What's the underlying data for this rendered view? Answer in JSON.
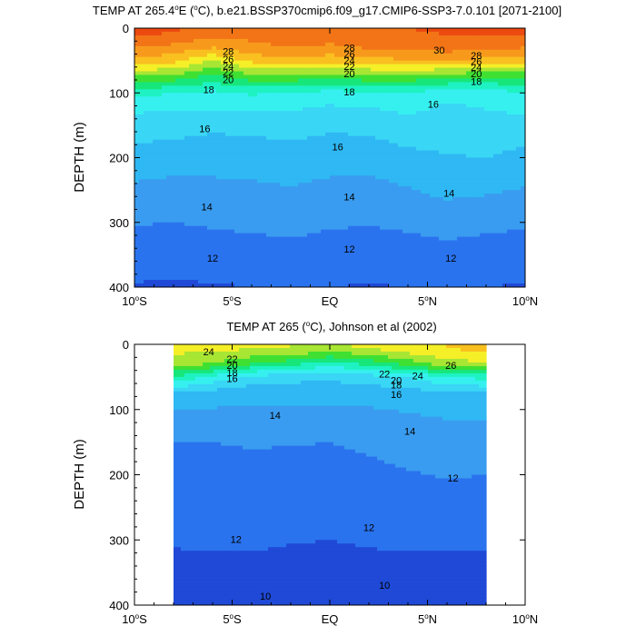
{
  "colors": {
    "levels": [
      "#1f49d6",
      "#2a73ee",
      "#3a9cf0",
      "#2fb8f3",
      "#3ad6f5",
      "#36f0f0",
      "#1ef2c2",
      "#17e67a",
      "#3fe032",
      "#a8e634",
      "#f5ef28",
      "#f9c020",
      "#f79a1c",
      "#f27416",
      "#ec4a10",
      "#e41e0a",
      "#c40000"
    ],
    "missing": "#ffffff"
  },
  "chart_data": [
    {
      "type": "contour",
      "title": "TEMP AT 265.4°E (°C), b.e21.BSSP370cmip6.f09_g17.CMIP6-SSP3-7.0.101 [2071-2100]",
      "title_parts": {
        "pre": "TEMP AT 265.4",
        "deg1": "o",
        "mid": "E (",
        "deg2": "o",
        "post": "C), b.e21.BSSP370cmip6.f09_g17.CMIP6-SSP3-7.0.101 [2071-2100]"
      },
      "ylabel": "DEPTH (m)",
      "xlim": [
        -10,
        10
      ],
      "ylim": [
        400,
        0
      ],
      "xticks": [
        {
          "v": -10,
          "label": "10",
          "sfx": "S"
        },
        {
          "v": -5,
          "label": "5",
          "sfx": "S"
        },
        {
          "v": 0,
          "label": "EQ",
          "sfx": ""
        },
        {
          "v": 5,
          "label": "5",
          "sfx": "N"
        },
        {
          "v": 10,
          "label": "10",
          "sfx": "N"
        }
      ],
      "yticks": [
        0,
        100,
        200,
        300,
        400
      ],
      "data_xrange": [
        -10,
        10
      ],
      "profile_lat": [
        -10,
        -8,
        -6,
        -4,
        -2,
        0,
        2,
        4,
        6,
        8,
        10
      ],
      "profile_depth": [
        0,
        10,
        30,
        50,
        75,
        100,
        125,
        150,
        200,
        250,
        300,
        350,
        400
      ],
      "profiles": [
        [
          31.5,
          31.2,
          29.5,
          27.5,
          23.5,
          19.5,
          17.8,
          16.8,
          15.4,
          14.2,
          13.1,
          12.1,
          11.4
        ],
        [
          31.2,
          30.8,
          29.0,
          27.0,
          23.0,
          19.0,
          17.5,
          16.6,
          15.2,
          14.0,
          13.0,
          12.1,
          11.3
        ],
        [
          30.6,
          30.0,
          28.0,
          25.0,
          21.5,
          18.6,
          17.7,
          16.3,
          15.1,
          14.1,
          13.2,
          12.2,
          11.4
        ],
        [
          30.2,
          29.8,
          29.2,
          27.0,
          23.0,
          19.2,
          17.6,
          16.4,
          15.2,
          14.2,
          13.3,
          12.4,
          11.5
        ],
        [
          30.4,
          30.0,
          29.5,
          27.5,
          23.0,
          19.0,
          17.6,
          16.6,
          15.4,
          14.4,
          13.4,
          12.6,
          11.6
        ],
        [
          30.3,
          30.0,
          29.3,
          27.0,
          22.5,
          18.4,
          17.2,
          16.3,
          15.1,
          14.1,
          13.2,
          12.3,
          11.5
        ],
        [
          30.6,
          30.3,
          29.6,
          27.5,
          23.0,
          18.8,
          17.4,
          16.4,
          15.1,
          14.0,
          13.1,
          12.2,
          11.4
        ],
        [
          31.0,
          30.8,
          30.0,
          27.8,
          23.0,
          19.0,
          17.8,
          16.9,
          15.6,
          14.4,
          13.3,
          12.3,
          11.5
        ],
        [
          31.3,
          31.0,
          30.2,
          28.0,
          22.5,
          18.0,
          17.2,
          16.8,
          15.9,
          14.9,
          13.6,
          12.5,
          11.6
        ],
        [
          31.5,
          31.2,
          30.0,
          27.5,
          22.0,
          18.2,
          17.5,
          17.0,
          16.0,
          14.7,
          13.4,
          12.3,
          11.5
        ],
        [
          31.4,
          31.0,
          29.5,
          27.0,
          22.5,
          19.0,
          17.8,
          16.8,
          15.6,
          14.4,
          13.2,
          12.2,
          11.4
        ]
      ],
      "contour_labels": [
        {
          "x": -5.2,
          "y": 36,
          "t": "28"
        },
        {
          "x": -5.2,
          "y": 48,
          "t": "26"
        },
        {
          "x": -5.2,
          "y": 58,
          "t": "24"
        },
        {
          "x": -5.2,
          "y": 68,
          "t": "22"
        },
        {
          "x": -5.2,
          "y": 79,
          "t": "20"
        },
        {
          "x": -6.2,
          "y": 95,
          "t": "18"
        },
        {
          "x": 1.0,
          "y": 30,
          "t": "28"
        },
        {
          "x": 1.0,
          "y": 40,
          "t": "26"
        },
        {
          "x": 1.0,
          "y": 50,
          "t": "24"
        },
        {
          "x": 1.0,
          "y": 59,
          "t": "22"
        },
        {
          "x": 1.0,
          "y": 70,
          "t": "20"
        },
        {
          "x": 1.0,
          "y": 98,
          "t": "18"
        },
        {
          "x": 5.6,
          "y": 34,
          "t": "30"
        },
        {
          "x": 7.5,
          "y": 42,
          "t": "28"
        },
        {
          "x": 7.5,
          "y": 51,
          "t": "26"
        },
        {
          "x": 7.5,
          "y": 60,
          "t": "24"
        },
        {
          "x": 7.5,
          "y": 70,
          "t": "20"
        },
        {
          "x": 7.5,
          "y": 82,
          "t": "18"
        },
        {
          "x": -6.4,
          "y": 155,
          "t": "16"
        },
        {
          "x": 0.4,
          "y": 183,
          "t": "16"
        },
        {
          "x": 5.3,
          "y": 117,
          "t": "16"
        },
        {
          "x": -6.3,
          "y": 276,
          "t": "14"
        },
        {
          "x": 1.0,
          "y": 260,
          "t": "14"
        },
        {
          "x": 6.1,
          "y": 255,
          "t": "14"
        },
        {
          "x": -6.0,
          "y": 355,
          "t": "12"
        },
        {
          "x": 1.0,
          "y": 341,
          "t": "12"
        },
        {
          "x": 6.2,
          "y": 355,
          "t": "12"
        }
      ]
    },
    {
      "type": "contour",
      "title": "TEMP AT 265 (°C), Johnson et al (2002)",
      "title_parts": {
        "pre": "TEMP AT 265 (",
        "deg1": "o",
        "mid": "",
        "deg2": "",
        "post": "C), Johnson et al (2002)"
      },
      "ylabel": "DEPTH (m)",
      "xlim": [
        -10,
        10
      ],
      "ylim": [
        400,
        0
      ],
      "xticks": [
        {
          "v": -10,
          "label": "10",
          "sfx": "S"
        },
        {
          "v": -5,
          "label": "5",
          "sfx": "S"
        },
        {
          "v": 0,
          "label": "EQ",
          "sfx": ""
        },
        {
          "v": 5,
          "label": "5",
          "sfx": "N"
        },
        {
          "v": 10,
          "label": "10",
          "sfx": "N"
        }
      ],
      "yticks": [
        0,
        100,
        200,
        300,
        400
      ],
      "data_xrange": [
        -8,
        8
      ],
      "profile_lat": [
        -8,
        -6,
        -4,
        -2,
        0,
        2,
        4,
        6,
        8
      ],
      "profile_depth": [
        0,
        10,
        30,
        50,
        75,
        100,
        125,
        150,
        200,
        250,
        300,
        350,
        400
      ],
      "profiles": [
        [
          25.6,
          25.3,
          24.0,
          20.5,
          15.9,
          14.5,
          13.6,
          13.0,
          12.6,
          12.2,
          11.7,
          10.9,
          9.6
        ],
        [
          25.5,
          25.2,
          23.5,
          18.5,
          15.4,
          14.4,
          13.6,
          13.0,
          12.6,
          12.2,
          11.8,
          11.0,
          10.2
        ],
        [
          25.2,
          24.8,
          22.0,
          17.0,
          15.0,
          14.3,
          13.7,
          13.1,
          12.6,
          12.1,
          11.8,
          11.0,
          10.2
        ],
        [
          25.2,
          24.5,
          21.0,
          16.6,
          14.9,
          14.3,
          13.6,
          13.1,
          12.4,
          12.0,
          11.6,
          10.9,
          10.1
        ],
        [
          25.0,
          24.0,
          19.5,
          16.4,
          14.9,
          14.3,
          13.6,
          13.0,
          12.3,
          11.9,
          11.5,
          10.8,
          10.0
        ],
        [
          25.5,
          24.5,
          21.0,
          16.8,
          15.1,
          14.4,
          13.8,
          13.3,
          12.6,
          12.1,
          11.7,
          10.9,
          10.0
        ],
        [
          26.3,
          25.5,
          22.5,
          17.5,
          15.3,
          14.6,
          14.1,
          13.6,
          12.9,
          12.3,
          11.8,
          11.0,
          10.1
        ],
        [
          26.6,
          26.2,
          24.5,
          19.0,
          15.8,
          14.8,
          14.3,
          13.8,
          13.1,
          12.5,
          11.8,
          11.0,
          10.2
        ],
        [
          27.2,
          26.8,
          24.5,
          19.5,
          16.0,
          15.0,
          14.3,
          13.8,
          13.0,
          12.4,
          11.8,
          11.0,
          10.1
        ]
      ],
      "contour_labels": [
        {
          "x": -6.2,
          "y": 11,
          "t": "24"
        },
        {
          "x": -5.0,
          "y": 22,
          "t": "22"
        },
        {
          "x": -5.0,
          "y": 32,
          "t": "20"
        },
        {
          "x": -5.0,
          "y": 43,
          "t": "18"
        },
        {
          "x": -5.0,
          "y": 52,
          "t": "16"
        },
        {
          "x": 2.8,
          "y": 45,
          "t": "22"
        },
        {
          "x": 4.5,
          "y": 48,
          "t": "24"
        },
        {
          "x": 6.2,
          "y": 32,
          "t": "26"
        },
        {
          "x": 3.4,
          "y": 55,
          "t": "20"
        },
        {
          "x": 3.4,
          "y": 62,
          "t": "18"
        },
        {
          "x": 3.4,
          "y": 77,
          "t": "16"
        },
        {
          "x": -2.8,
          "y": 109,
          "t": "14"
        },
        {
          "x": 4.1,
          "y": 133,
          "t": "14"
        },
        {
          "x": 6.3,
          "y": 205,
          "t": "12"
        },
        {
          "x": 2.0,
          "y": 281,
          "t": "12"
        },
        {
          "x": -4.8,
          "y": 299,
          "t": "12"
        },
        {
          "x": -3.3,
          "y": 386,
          "t": "10"
        },
        {
          "x": 2.8,
          "y": 369,
          "t": "10"
        }
      ]
    }
  ]
}
